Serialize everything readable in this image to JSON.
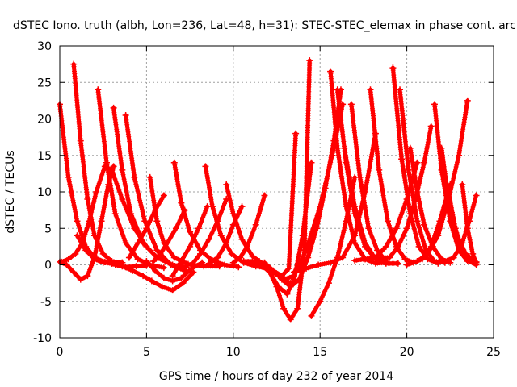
{
  "chart_data": {
    "type": "line",
    "title": "dSTEC Iono. truth (albh, Lon=236, Lat=48, h=31): STEC-STEC_elemax in phase cont. arc",
    "xlabel": "GPS time / hours of day 232 of year 2014",
    "ylabel": "dSTEC  / TECUs",
    "xlim": [
      0,
      25
    ],
    "ylim": [
      -10,
      30
    ],
    "xticks": [
      0,
      5,
      10,
      15,
      20,
      25
    ],
    "yticks": [
      -10,
      -5,
      0,
      5,
      10,
      15,
      20,
      25,
      30
    ],
    "grid": true,
    "marker": "plus",
    "colors": {
      "series": "#ff0000",
      "axis": "#000000",
      "grid": "#a0a0a0"
    },
    "series": [
      {
        "x": [
          0.0,
          0.5,
          1.0,
          1.5,
          2.0,
          2.5,
          3.0,
          3.6
        ],
        "y": [
          22.0,
          12.0,
          6.0,
          2.5,
          1.0,
          0.4,
          0.2,
          0.3
        ]
      },
      {
        "x": [
          0.0,
          0.4,
          0.8,
          1.2,
          1.6,
          2.0,
          2.4,
          2.8,
          3.1
        ],
        "y": [
          0.4,
          0.0,
          -1.0,
          -2.0,
          -1.5,
          1.0,
          6.0,
          11.0,
          13.5
        ]
      },
      {
        "x": [
          0.1,
          0.5,
          0.9,
          1.3,
          1.7,
          2.1,
          2.6,
          3.0,
          3.6,
          4.3,
          5.0
        ],
        "y": [
          0.4,
          0.8,
          1.5,
          3.0,
          6.0,
          10.0,
          13.5,
          13.0,
          9.0,
          5.0,
          2.5
        ]
      },
      {
        "x": [
          0.8,
          1.2,
          1.6,
          2.0,
          2.5,
          3.0,
          3.6
        ],
        "y": [
          27.5,
          17.0,
          9.0,
          4.0,
          1.5,
          0.5,
          0.3
        ]
      },
      {
        "x": [
          2.2,
          2.7,
          3.2,
          3.8,
          4.5,
          5.2,
          6.0
        ],
        "y": [
          24.0,
          14.0,
          7.0,
          3.0,
          0.8,
          0.0,
          -0.4
        ]
      },
      {
        "x": [
          3.1,
          3.6,
          4.1,
          4.8,
          5.6,
          6.5,
          7.3
        ],
        "y": [
          21.5,
          13.0,
          7.0,
          3.0,
          1.0,
          0.0,
          -0.3
        ]
      },
      {
        "x": [
          3.8,
          4.3,
          4.9,
          5.6,
          6.4,
          7.2
        ],
        "y": [
          20.5,
          12.0,
          6.0,
          2.0,
          0.0,
          -0.8
        ]
      },
      {
        "x": [
          1.0,
          1.5,
          2.0,
          2.5,
          3.0
        ],
        "y": [
          4.0,
          2.0,
          0.8,
          0.3,
          0.2
        ]
      },
      {
        "x": [
          2.0,
          2.6,
          3.2,
          3.8,
          4.4,
          5.0
        ],
        "y": [
          1.0,
          0.4,
          0.0,
          -0.3,
          -0.2,
          -0.1
        ]
      },
      {
        "x": [
          3.0,
          3.6,
          4.2,
          4.8,
          5.3,
          5.9,
          6.5,
          7.1,
          7.7
        ],
        "y": [
          0.2,
          -0.2,
          -0.8,
          -1.5,
          -2.2,
          -3.0,
          -3.5,
          -2.5,
          -1.0
        ]
      },
      {
        "x": [
          5.0,
          5.5,
          6.0,
          6.5,
          7.0,
          7.6,
          8.2
        ],
        "y": [
          0.5,
          -0.8,
          -1.8,
          -2.2,
          -1.8,
          -0.5,
          0.3
        ]
      },
      {
        "x": [
          5.2,
          5.6,
          6.0,
          6.6,
          7.4,
          8.3,
          9.2
        ],
        "y": [
          12.0,
          6.0,
          3.0,
          1.0,
          0.1,
          -0.2,
          -0.2
        ]
      },
      {
        "x": [
          6.6,
          7.0,
          7.5,
          8.1,
          8.8,
          9.5,
          10.3
        ],
        "y": [
          14.0,
          8.5,
          4.5,
          2.0,
          0.6,
          0.0,
          -0.3
        ]
      },
      {
        "x": [
          8.4,
          8.8,
          9.3,
          9.9,
          10.6,
          11.3,
          12.0
        ],
        "y": [
          13.5,
          8.0,
          4.0,
          1.5,
          0.3,
          -0.2,
          -0.5
        ]
      },
      {
        "x": [
          9.6,
          10.0,
          10.5,
          11.1,
          11.8,
          12.6,
          13.3
        ],
        "y": [
          11.0,
          7.0,
          3.5,
          1.2,
          0.0,
          -1.5,
          -2.5
        ]
      },
      {
        "x": [
          4.0,
          4.5,
          5.0,
          5.5,
          6.0
        ],
        "y": [
          1.0,
          3.0,
          5.0,
          7.5,
          9.5
        ]
      },
      {
        "x": [
          5.4,
          5.8,
          6.2,
          6.7,
          7.2
        ],
        "y": [
          0.5,
          1.5,
          3.0,
          5.0,
          7.5
        ]
      },
      {
        "x": [
          6.5,
          7.0,
          7.5,
          8.0,
          8.5
        ],
        "y": [
          -1.5,
          0.5,
          2.5,
          5.0,
          8.0
        ]
      },
      {
        "x": [
          7.6,
          8.1,
          8.6,
          9.1,
          9.6
        ],
        "y": [
          0.0,
          1.5,
          3.5,
          6.0,
          9.0
        ]
      },
      {
        "x": [
          8.6,
          9.1,
          9.6,
          10.0,
          10.5
        ],
        "y": [
          0.2,
          1.0,
          3.0,
          5.5,
          8.0
        ]
      },
      {
        "x": [
          10.0,
          10.4,
          10.8,
          11.3,
          11.8
        ],
        "y": [
          0.3,
          1.0,
          2.5,
          5.5,
          9.5
        ]
      },
      {
        "x": [
          10.6,
          11.1,
          11.6,
          12.1,
          12.6,
          13.1,
          13.5,
          14.0,
          14.5
        ],
        "y": [
          0.5,
          0.5,
          0.0,
          -1.0,
          -3.0,
          -4.0,
          -2.0,
          4.0,
          14.0
        ]
      },
      {
        "x": [
          11.5,
          12.0,
          12.5,
          12.9,
          13.3,
          13.7,
          14.1,
          14.4
        ],
        "y": [
          0.5,
          -0.5,
          -3.0,
          -6.0,
          -7.5,
          -6.0,
          2.0,
          28.0
        ]
      },
      {
        "x": [
          11.8,
          12.3,
          12.8,
          13.2,
          13.6
        ],
        "y": [
          0.3,
          -0.8,
          -1.5,
          -0.5,
          18.0
        ]
      },
      {
        "x": [
          12.3,
          12.9,
          13.5,
          14.2,
          15.0,
          15.7,
          16.3
        ],
        "y": [
          -1.0,
          -2.0,
          -1.5,
          2.0,
          8.0,
          15.0,
          22.0
        ]
      },
      {
        "x": [
          12.8,
          13.3,
          13.8,
          14.3,
          14.8,
          15.3,
          15.8,
          16.2
        ],
        "y": [
          -2.0,
          -3.0,
          -2.0,
          1.0,
          5.0,
          10.5,
          17.0,
          24.0
        ]
      },
      {
        "x": [
          14.5,
          15.0,
          15.5,
          16.0,
          16.5,
          17.0
        ],
        "y": [
          -7.0,
          -5.0,
          -2.5,
          1.0,
          6.0,
          12.0
        ]
      },
      {
        "x": [
          13.5,
          14.2,
          14.9,
          15.6,
          16.3,
          17.0,
          17.6,
          18.2
        ],
        "y": [
          -1.0,
          -0.5,
          0.0,
          0.3,
          1.0,
          4.0,
          10.0,
          18.0
        ]
      },
      {
        "x": [
          15.6,
          16.0,
          16.5,
          17.0,
          17.6,
          18.2,
          18.8
        ],
        "y": [
          26.5,
          16.0,
          8.0,
          3.0,
          0.8,
          0.2,
          0.3
        ]
      },
      {
        "x": [
          16.0,
          16.5,
          17.0,
          17.6,
          18.2,
          18.8
        ],
        "y": [
          24.0,
          14.0,
          7.0,
          2.5,
          0.8,
          0.4
        ]
      },
      {
        "x": [
          16.4,
          17.0,
          17.6,
          18.2,
          18.8,
          19.5
        ],
        "y": [
          16.0,
          8.0,
          3.0,
          0.8,
          0.2,
          0.2
        ]
      },
      {
        "x": [
          16.8,
          17.3,
          17.8,
          18.3,
          18.8
        ],
        "y": [
          22.0,
          12.0,
          5.0,
          2.0,
          0.5
        ]
      },
      {
        "x": [
          17.0,
          17.6,
          18.2,
          18.8,
          19.4,
          20.0,
          20.6
        ],
        "y": [
          0.6,
          0.8,
          1.0,
          2.5,
          5.0,
          9.0,
          14.0
        ]
      },
      {
        "x": [
          17.9,
          18.4,
          18.9,
          19.4,
          19.9,
          20.4
        ],
        "y": [
          24.0,
          13.0,
          6.0,
          2.5,
          0.8,
          0.3
        ]
      },
      {
        "x": [
          18.5,
          19.0,
          19.5,
          20.0,
          20.5,
          21.0,
          21.4
        ],
        "y": [
          1.0,
          1.0,
          2.5,
          5.0,
          9.0,
          14.0,
          19.0
        ]
      },
      {
        "x": [
          19.2,
          19.7,
          20.2,
          20.7,
          21.2,
          21.8
        ],
        "y": [
          27.0,
          14.5,
          7.0,
          2.5,
          0.8,
          0.2
        ]
      },
      {
        "x": [
          19.6,
          20.1,
          20.6,
          21.1,
          21.6,
          22.2
        ],
        "y": [
          24.0,
          13.0,
          6.0,
          2.0,
          0.5,
          0.3
        ]
      },
      {
        "x": [
          20.2,
          20.6,
          21.0,
          21.5,
          22.0,
          22.5
        ],
        "y": [
          16.0,
          10.0,
          5.5,
          2.5,
          0.8,
          0.3
        ]
      },
      {
        "x": [
          20.4,
          20.9,
          21.4,
          21.9,
          22.5
        ],
        "y": [
          0.3,
          0.8,
          2.5,
          6.0,
          11.0
        ]
      },
      {
        "x": [
          20.0,
          20.6,
          21.2,
          21.8,
          22.4,
          23.0,
          23.5
        ],
        "y": [
          0.0,
          0.5,
          1.5,
          4.0,
          9.0,
          15.0,
          22.5
        ]
      },
      {
        "x": [
          21.6,
          22.0,
          22.5,
          23.0,
          23.5,
          24.0
        ],
        "y": [
          22.0,
          13.0,
          6.0,
          2.0,
          0.5,
          0.4
        ]
      },
      {
        "x": [
          22.0,
          22.4,
          22.9,
          23.4,
          23.9
        ],
        "y": [
          16.0,
          9.0,
          4.0,
          1.5,
          0.5
        ]
      },
      {
        "x": [
          22.2,
          22.7,
          23.2,
          23.6,
          24.0
        ],
        "y": [
          0.5,
          1.0,
          3.0,
          6.0,
          9.5
        ]
      },
      {
        "x": [
          22.4,
          22.8,
          23.2,
          23.6,
          24.0
        ],
        "y": [
          10.0,
          5.0,
          2.0,
          0.5,
          0.0
        ]
      },
      {
        "x": [
          23.2,
          23.5,
          23.8,
          24.0
        ],
        "y": [
          11.0,
          5.0,
          1.5,
          0.3
        ]
      }
    ]
  }
}
